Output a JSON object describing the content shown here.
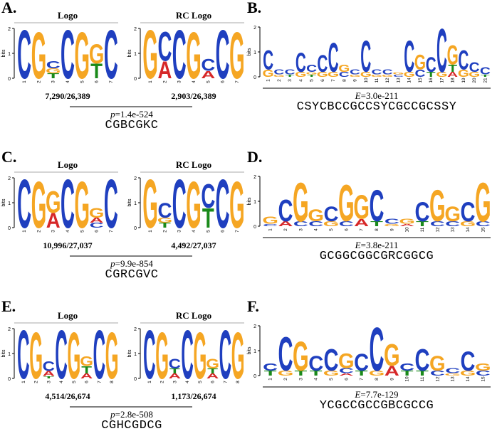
{
  "colors": {
    "A": "#d62728",
    "C": "#1f3fbf",
    "G": "#f5a623",
    "T": "#1a8a1a"
  },
  "axis": {
    "ylabel": "bits",
    "ticks": [
      "0",
      "1",
      "2"
    ]
  },
  "panels": [
    {
      "id": "A",
      "label": "A.",
      "paired": true,
      "logo_title": "Logo",
      "rc_title": "RC Logo",
      "count1": "7,290/26,389",
      "count2": "2,903/26,389",
      "stat_prefix": "p",
      "stat_value": "=1.4e-524",
      "consensus": "CGBCGKC",
      "logo1": [
        [
          [
            "C",
            2.0
          ]
        ],
        [
          [
            "G",
            1.9
          ]
        ],
        [
          [
            "C",
            0.3
          ],
          [
            "T",
            0.2
          ],
          [
            "G",
            0.2
          ]
        ],
        [
          [
            "C",
            2.0
          ]
        ],
        [
          [
            "G",
            1.9
          ]
        ],
        [
          [
            "G",
            0.8
          ],
          [
            "T",
            0.6
          ]
        ],
        [
          [
            "C",
            2.0
          ]
        ]
      ],
      "logo2": [
        [
          [
            "G",
            2.0
          ]
        ],
        [
          [
            "C",
            1.2
          ],
          [
            "A",
            0.7
          ]
        ],
        [
          [
            "C",
            2.0
          ]
        ],
        [
          [
            "G",
            1.9
          ]
        ],
        [
          [
            "C",
            0.5
          ],
          [
            "A",
            0.3
          ]
        ],
        [
          [
            "C",
            2.0
          ]
        ],
        [
          [
            "G",
            1.9
          ]
        ]
      ],
      "xticks": [
        "1",
        "2",
        "3",
        "4",
        "5",
        "6",
        "7"
      ]
    },
    {
      "id": "B",
      "label": "B.",
      "paired": false,
      "stat_prefix": "E",
      "stat_value": "=3.0e-211",
      "consensus": "CSYCBCCGCCSYCGCCGCSSY",
      "logo1": [
        [
          [
            "C",
            0.8
          ],
          [
            "G",
            0.3
          ]
        ],
        [
          [
            "C",
            0.2
          ],
          [
            "G",
            0.1
          ]
        ],
        [
          [
            "C",
            0.2
          ],
          [
            "T",
            0.1
          ]
        ],
        [
          [
            "C",
            0.8
          ],
          [
            "G",
            0.2
          ]
        ],
        [
          [
            "C",
            0.3
          ],
          [
            "T",
            0.1
          ],
          [
            "G",
            0.1
          ]
        ],
        [
          [
            "C",
            0.7
          ],
          [
            "G",
            0.2
          ]
        ],
        [
          [
            "C",
            1.2
          ],
          [
            "G",
            0.2
          ]
        ],
        [
          [
            "G",
            0.3
          ],
          [
            "C",
            0.2
          ]
        ],
        [
          [
            "C",
            0.2
          ],
          [
            "G",
            0.1
          ]
        ],
        [
          [
            "C",
            1.3
          ],
          [
            "G",
            0.2
          ]
        ],
        [
          [
            "C",
            0.2
          ],
          [
            "G",
            0.1
          ]
        ],
        [
          [
            "C",
            0.2
          ],
          [
            "G",
            0.1
          ]
        ],
        [
          [
            "C",
            0.1
          ],
          [
            "G",
            0.1
          ]
        ],
        [
          [
            "C",
            1.3
          ],
          [
            "G",
            0.2
          ]
        ],
        [
          [
            "G",
            0.6
          ],
          [
            "C",
            0.3
          ]
        ],
        [
          [
            "C",
            0.6
          ],
          [
            "T",
            0.2
          ]
        ],
        [
          [
            "C",
            1.8
          ],
          [
            "G",
            0.2
          ]
        ],
        [
          [
            "G",
            0.8
          ],
          [
            "T",
            0.3
          ],
          [
            "A",
            0.2
          ]
        ],
        [
          [
            "C",
            0.8
          ],
          [
            "G",
            0.3
          ]
        ],
        [
          [
            "C",
            0.4
          ],
          [
            "G",
            0.2
          ]
        ],
        [
          [
            "C",
            0.3
          ],
          [
            "T",
            0.1
          ]
        ]
      ],
      "xticks": [
        "1",
        "2",
        "3",
        "4",
        "5",
        "6",
        "7",
        "8",
        "9",
        "10",
        "11",
        "12",
        "13",
        "14",
        "15",
        "16",
        "17",
        "18",
        "19",
        "20",
        "21"
      ]
    },
    {
      "id": "C",
      "label": "C.",
      "paired": true,
      "logo_title": "Logo",
      "rc_title": "RC Logo",
      "count1": "10,996/27,037",
      "count2": "4,492/27,037",
      "stat_prefix": "p",
      "stat_value": "=9.9e-854",
      "consensus": "CGRCGVC",
      "logo1": [
        [
          [
            "C",
            2.0
          ]
        ],
        [
          [
            "G",
            1.9
          ]
        ],
        [
          [
            "G",
            0.9
          ],
          [
            "A",
            0.6
          ]
        ],
        [
          [
            "C",
            2.0
          ]
        ],
        [
          [
            "G",
            1.9
          ]
        ],
        [
          [
            "G",
            0.4
          ],
          [
            "C",
            0.2
          ],
          [
            "A",
            0.2
          ]
        ],
        [
          [
            "C",
            2.0
          ]
        ]
      ],
      "logo2": [
        [
          [
            "G",
            2.0
          ]
        ],
        [
          [
            "C",
            0.6
          ],
          [
            "T",
            0.2
          ],
          [
            "G",
            0.2
          ]
        ],
        [
          [
            "C",
            2.0
          ]
        ],
        [
          [
            "G",
            1.9
          ]
        ],
        [
          [
            "C",
            1.0
          ],
          [
            "T",
            0.8
          ]
        ],
        [
          [
            "C",
            2.0
          ]
        ],
        [
          [
            "G",
            1.9
          ]
        ]
      ],
      "xticks": [
        "1",
        "2",
        "3",
        "4",
        "5",
        "6",
        "7"
      ]
    },
    {
      "id": "D",
      "label": "D.",
      "paired": false,
      "stat_prefix": "E",
      "stat_value": "=3.8e-211",
      "consensus": "GCGGCGGCGRCGGCG",
      "logo1": [
        [
          [
            "G",
            0.3
          ],
          [
            "C",
            0.1
          ]
        ],
        [
          [
            "C",
            0.9
          ],
          [
            "A",
            0.2
          ]
        ],
        [
          [
            "G",
            1.6
          ],
          [
            "C",
            0.2
          ]
        ],
        [
          [
            "G",
            0.5
          ],
          [
            "C",
            0.2
          ]
        ],
        [
          [
            "C",
            0.6
          ],
          [
            "G",
            0.2
          ]
        ],
        [
          [
            "G",
            1.5
          ],
          [
            "C",
            0.2
          ]
        ],
        [
          [
            "G",
            1.0
          ],
          [
            "A",
            0.3
          ]
        ],
        [
          [
            "C",
            1.3
          ],
          [
            "T",
            0.2
          ]
        ],
        [
          [
            "C",
            0.2
          ],
          [
            "G",
            0.1
          ]
        ],
        [
          [
            "G",
            0.2
          ],
          [
            "A",
            0.1
          ]
        ],
        [
          [
            "C",
            0.8
          ],
          [
            "T",
            0.2
          ]
        ],
        [
          [
            "G",
            1.3
          ],
          [
            "C",
            0.2
          ]
        ],
        [
          [
            "G",
            0.6
          ],
          [
            "C",
            0.2
          ]
        ],
        [
          [
            "C",
            0.8
          ],
          [
            "G",
            0.2
          ]
        ],
        [
          [
            "G",
            1.6
          ],
          [
            "C",
            0.2
          ]
        ]
      ],
      "xticks": [
        "1",
        "2",
        "3",
        "4",
        "5",
        "6",
        "7",
        "8",
        "9",
        "10",
        "11",
        "12",
        "13",
        "14",
        "15"
      ]
    },
    {
      "id": "E",
      "label": "E.",
      "paired": true,
      "logo_title": "Logo",
      "rc_title": "RC Logo",
      "count1": "4,514/26,674",
      "count2": "1,173/26,674",
      "stat_prefix": "p",
      "stat_value": "=2.8e-508",
      "consensus": "CGHCGDCG",
      "logo1": [
        [
          [
            "C",
            2.0
          ]
        ],
        [
          [
            "G",
            1.9
          ]
        ],
        [
          [
            "C",
            0.4
          ],
          [
            "A",
            0.2
          ],
          [
            "T",
            0.1
          ]
        ],
        [
          [
            "C",
            2.0
          ]
        ],
        [
          [
            "G",
            1.9
          ]
        ],
        [
          [
            "G",
            0.4
          ],
          [
            "T",
            0.3
          ],
          [
            "A",
            0.2
          ]
        ],
        [
          [
            "C",
            2.0
          ]
        ],
        [
          [
            "G",
            1.9
          ]
        ]
      ],
      "logo2": [
        [
          [
            "C",
            2.0
          ]
        ],
        [
          [
            "G",
            1.9
          ]
        ],
        [
          [
            "C",
            0.4
          ],
          [
            "A",
            0.2
          ],
          [
            "T",
            0.2
          ]
        ],
        [
          [
            "C",
            2.0
          ]
        ],
        [
          [
            "G",
            1.9
          ]
        ],
        [
          [
            "G",
            0.4
          ],
          [
            "A",
            0.2
          ],
          [
            "T",
            0.2
          ]
        ],
        [
          [
            "C",
            2.0
          ]
        ],
        [
          [
            "G",
            1.9
          ]
        ]
      ],
      "xticks": [
        "1",
        "2",
        "3",
        "4",
        "5",
        "6",
        "7",
        "8"
      ]
    },
    {
      "id": "F",
      "label": "F.",
      "paired": false,
      "stat_prefix": "E",
      "stat_value": "=7.7e-129",
      "consensus": "YCGCCGCCGBCGCCG",
      "logo1": [
        [
          [
            "C",
            0.3
          ],
          [
            "T",
            0.2
          ]
        ],
        [
          [
            "C",
            1.4
          ],
          [
            "G",
            0.2
          ]
        ],
        [
          [
            "G",
            1.2
          ],
          [
            "T",
            0.2
          ]
        ],
        [
          [
            "C",
            0.6
          ],
          [
            "T",
            0.2
          ]
        ],
        [
          [
            "C",
            0.9
          ],
          [
            "G",
            0.2
          ]
        ],
        [
          [
            "G",
            0.6
          ],
          [
            "C",
            0.2
          ],
          [
            "A",
            0.1
          ]
        ],
        [
          [
            "C",
            0.7
          ],
          [
            "T",
            0.2
          ]
        ],
        [
          [
            "C",
            1.8
          ],
          [
            "G",
            0.2
          ]
        ],
        [
          [
            "G",
            0.9
          ],
          [
            "A",
            0.4
          ]
        ],
        [
          [
            "C",
            0.3
          ],
          [
            "T",
            0.2
          ]
        ],
        [
          [
            "C",
            0.9
          ],
          [
            "T",
            0.2
          ]
        ],
        [
          [
            "G",
            0.6
          ],
          [
            "C",
            0.2
          ]
        ],
        [
          [
            "C",
            0.2
          ],
          [
            "G",
            0.1
          ]
        ],
        [
          [
            "C",
            0.8
          ],
          [
            "G",
            0.2
          ]
        ],
        [
          [
            "G",
            0.3
          ],
          [
            "C",
            0.2
          ]
        ]
      ],
      "xticks": [
        "1",
        "2",
        "3",
        "4",
        "5",
        "6",
        "7",
        "8",
        "9",
        "10",
        "11",
        "12",
        "13",
        "14",
        "15"
      ]
    }
  ]
}
